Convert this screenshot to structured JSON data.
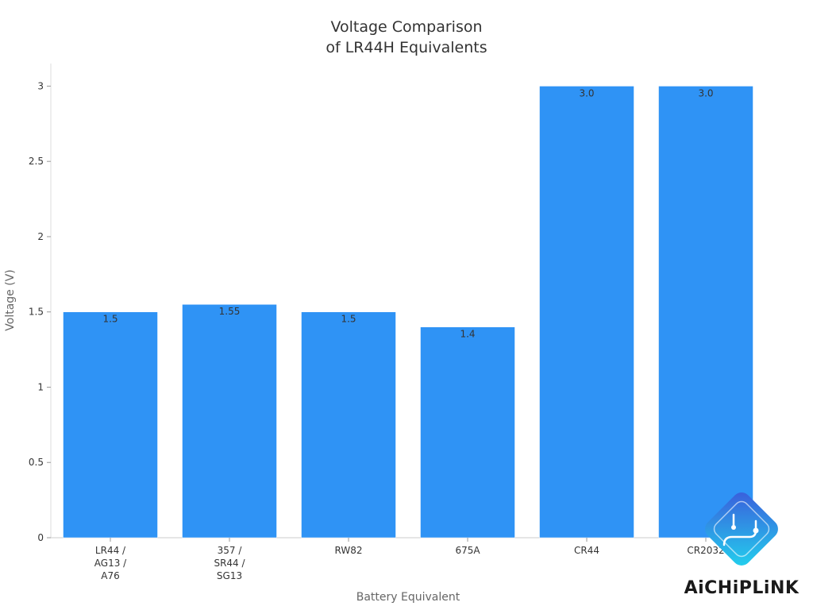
{
  "chart_data": {
    "type": "bar",
    "title": [
      "Voltage Comparison",
      "of LR44H Equivalents"
    ],
    "xlabel": "Battery Equivalent",
    "ylabel": "Voltage (V)",
    "ylim": [
      0,
      3.15
    ],
    "yticks": [
      0,
      0.5,
      1,
      1.5,
      2,
      2.5,
      3
    ],
    "ytick_labels": [
      "0",
      "0.5",
      "1",
      "1.5",
      "2",
      "2.5",
      "3"
    ],
    "categories": [
      [
        "LR44 /",
        "AG13 /",
        "A76"
      ],
      [
        "357 /",
        "SR44 /",
        "SG13"
      ],
      [
        "RW82"
      ],
      [
        "675A"
      ],
      [
        "CR44"
      ],
      [
        "CR2032"
      ]
    ],
    "values": [
      1.5,
      1.55,
      1.5,
      1.4,
      3.0,
      3.0
    ],
    "value_labels": [
      "1.5",
      "1.55",
      "1.5",
      "1.4",
      "3.0",
      "3.0"
    ],
    "bar_color": "#2f93f5",
    "grid": false,
    "legend": "none"
  },
  "watermark": {
    "text": "AiCHiPLiNK",
    "icon": "chip-logo-icon",
    "colors": [
      "#3b5bdb",
      "#22d3ee"
    ]
  }
}
